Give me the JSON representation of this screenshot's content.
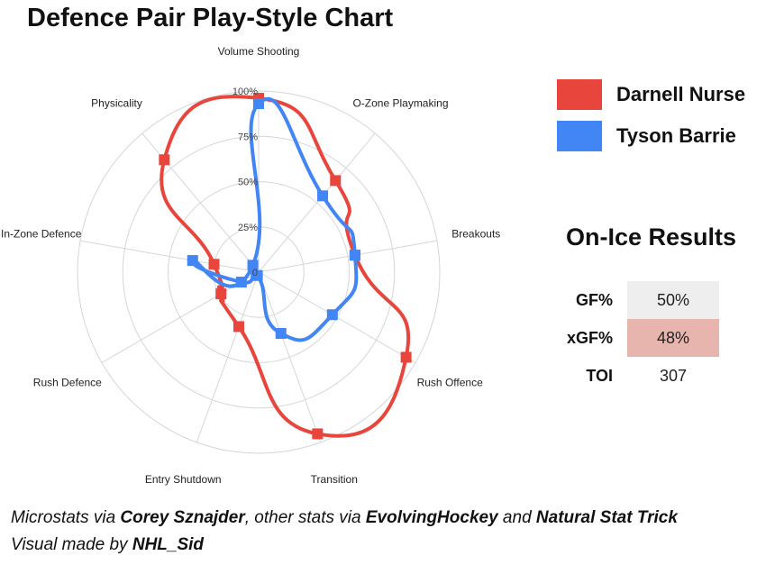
{
  "title": "Defence Pair Play-Style Chart",
  "chart_data": {
    "type": "radar",
    "title": "Defence Pair Play-Style Chart",
    "axes": [
      "Volume Shooting",
      "O-Zone Playmaking",
      "Breakouts",
      "Rush Offence",
      "Transition",
      "Entry Shutdown",
      "Rush Defence",
      "In-Zone Defence",
      "Physicality"
    ],
    "ticks": [
      "0",
      "25%",
      "50%",
      "75%",
      "100%"
    ],
    "range": [
      0,
      100
    ],
    "series": [
      {
        "name": "Darnell Nurse",
        "color": "#e8453c",
        "values": [
          96,
          66,
          54,
          94,
          95,
          32,
          24,
          25,
          81
        ]
      },
      {
        "name": "Tyson Barrie",
        "color": "#4285f4",
        "values": [
          93,
          55,
          54,
          47,
          36,
          2,
          11,
          37,
          5
        ]
      }
    ],
    "legend_position": "right"
  },
  "results": {
    "title": "On-Ice Results",
    "rows": [
      {
        "label": "GF%",
        "value": "50%",
        "bg": "#eeeeee"
      },
      {
        "label": "xGF%",
        "value": "48%",
        "bg": "#e8b4ae"
      },
      {
        "label": "TOI",
        "value": "307",
        "bg": "#ffffff"
      }
    ]
  },
  "footer": {
    "l1_a": "Microstats via ",
    "l1_b": "Corey Sznajder",
    "l1_c": ", other stats via ",
    "l1_d": "EvolvingHockey",
    "l1_e": " and ",
    "l1_f": "Natural Stat Trick",
    "l2_a": "Visual made by ",
    "l2_b": "NHL_Sid"
  }
}
